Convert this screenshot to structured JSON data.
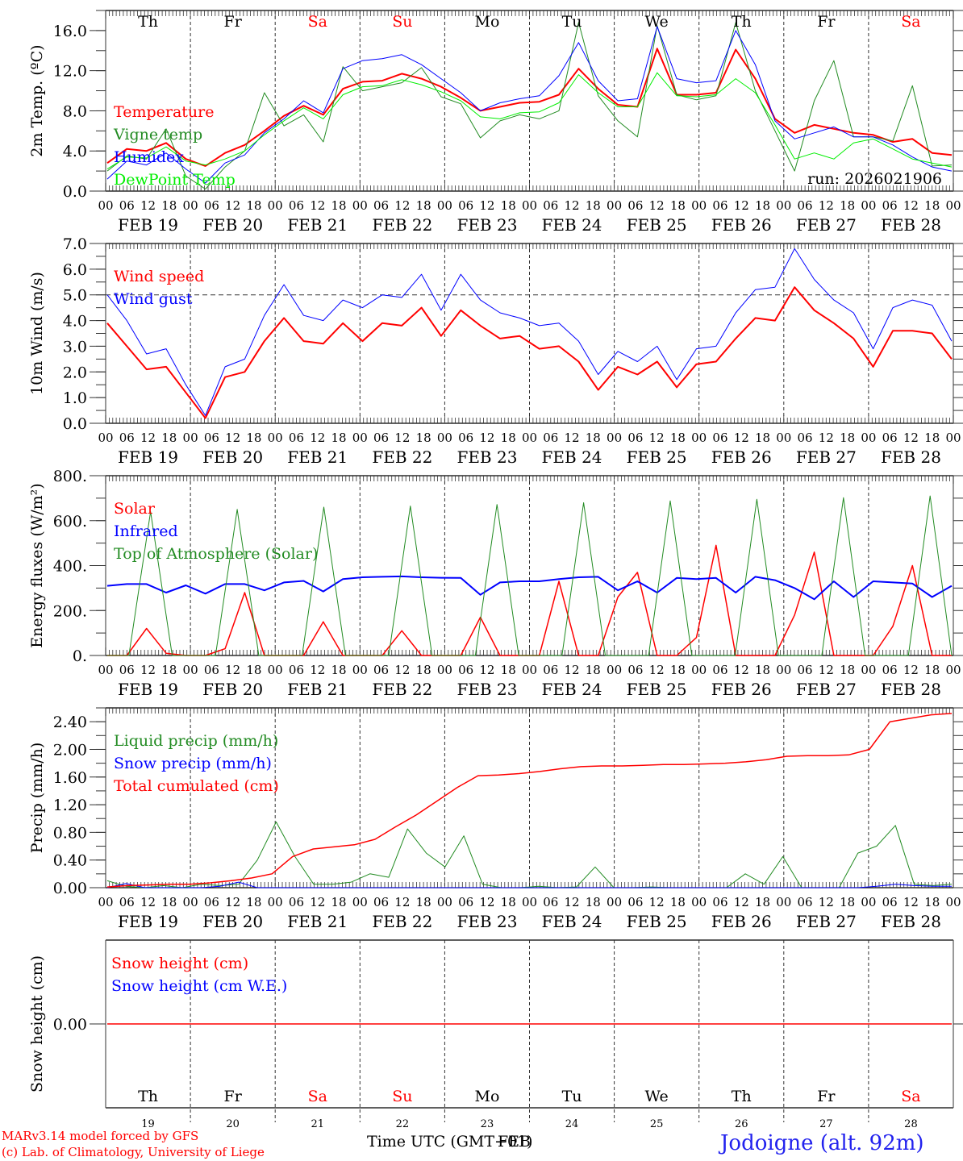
{
  "run_label": "run: 2026021906",
  "footer": {
    "model": "MARv3.14 model forced by GFS",
    "credit": "(c) Lab. of Climatology, University of Liege",
    "xaxis_title": "Time UTC (GMT+01)",
    "xaxis_overlap": "FEB",
    "location": "Jodoigne (alt. 92m)"
  },
  "days": [
    {
      "abbr": "Th",
      "date": "FEB 19",
      "num": "19",
      "weekend": false
    },
    {
      "abbr": "Fr",
      "date": "FEB 20",
      "num": "20",
      "weekend": false
    },
    {
      "abbr": "Sa",
      "date": "FEB 21",
      "num": "21",
      "weekend": true
    },
    {
      "abbr": "Su",
      "date": "FEB 22",
      "num": "22",
      "weekend": true
    },
    {
      "abbr": "Mo",
      "date": "FEB 23",
      "num": "23",
      "weekend": false
    },
    {
      "abbr": "Tu",
      "date": "FEB 24",
      "num": "24",
      "weekend": false
    },
    {
      "abbr": "We",
      "date": "FEB 25",
      "num": "25",
      "weekend": false
    },
    {
      "abbr": "Th",
      "date": "FEB 26",
      "num": "26",
      "weekend": false
    },
    {
      "abbr": "Fr",
      "date": "FEB 27",
      "num": "27",
      "weekend": false
    },
    {
      "abbr": "Sa",
      "date": "FEB 28",
      "num": "28",
      "weekend": true
    }
  ],
  "hour_labels": [
    "00",
    "06",
    "12",
    "18"
  ],
  "final_hour_label": "00",
  "colors": {
    "red": "#ff0000",
    "green": "#228b22",
    "blue": "#0000ff",
    "lightgreen": "#00ee00",
    "black": "#000000",
    "location": "#2222ee"
  },
  "chart_data": [
    {
      "type": "line",
      "id": "temp",
      "ylabel": "2m Temp. (ºC)",
      "ylim": [
        0,
        18
      ],
      "yticks": [
        0,
        4,
        8,
        12,
        16
      ],
      "ytick_labels": [
        "0.0",
        "4.0",
        "8.0",
        "12.0",
        "16.0"
      ],
      "x_unit": "hours since FEB 19 00 UTC, 6-hourly",
      "series": [
        {
          "name": "Temperature",
          "color": "#ff0000",
          "width": 2,
          "values": [
            2.8,
            4.2,
            4.0,
            4.8,
            3.2,
            2.5,
            3.8,
            4.6,
            6.0,
            7.5,
            8.5,
            7.6,
            10.2,
            10.9,
            11.0,
            11.7,
            11.2,
            10.4,
            9.3,
            8.0,
            8.4,
            8.8,
            8.9,
            9.6,
            12.2,
            10.2,
            8.6,
            8.4,
            14.2,
            9.6,
            9.6,
            9.8,
            14.1,
            11.2,
            7.2,
            5.8,
            6.6,
            6.2,
            5.8,
            5.6,
            4.9,
            5.2,
            3.8,
            3.6
          ]
        },
        {
          "name": "Vigne temp",
          "color": "#228b22",
          "width": 1,
          "values": [
            2.0,
            3.5,
            3.2,
            6.2,
            1.5,
            0.2,
            2.4,
            4.0,
            9.8,
            6.5,
            7.6,
            4.9,
            12.4,
            10.0,
            10.4,
            10.8,
            12.3,
            9.4,
            8.7,
            5.3,
            7.0,
            7.6,
            7.2,
            8.0,
            16.8,
            9.5,
            7.0,
            5.4,
            16.5,
            9.6,
            9.1,
            9.5,
            16.8,
            10.0,
            6.0,
            2.0,
            9.0,
            13.0,
            5.4,
            5.4,
            5.0,
            10.5,
            2.5,
            2.6
          ]
        },
        {
          "name": "Humidex",
          "color": "#0000ff",
          "width": 1,
          "values": [
            1.2,
            3.0,
            2.6,
            3.8,
            2.2,
            0.8,
            2.8,
            3.6,
            5.8,
            7.2,
            9.0,
            7.8,
            12.2,
            13.0,
            13.2,
            13.6,
            12.6,
            11.2,
            9.8,
            8.0,
            8.8,
            9.2,
            9.5,
            11.5,
            14.8,
            11.0,
            9.0,
            9.2,
            16.4,
            11.2,
            10.8,
            11.0,
            16.0,
            12.6,
            7.0,
            5.2,
            5.8,
            6.4,
            5.4,
            5.4,
            4.6,
            3.4,
            2.4,
            2.0
          ]
        },
        {
          "name": "DewPoint Temp",
          "color": "#00ee00",
          "width": 1,
          "values": [
            2.2,
            3.4,
            3.3,
            4.4,
            3.0,
            2.6,
            3.2,
            4.0,
            5.6,
            7.0,
            8.3,
            7.2,
            9.6,
            10.4,
            10.5,
            11.1,
            10.6,
            9.9,
            9.0,
            7.4,
            7.2,
            7.8,
            7.9,
            8.8,
            11.6,
            9.8,
            8.4,
            8.4,
            11.8,
            9.5,
            9.4,
            9.6,
            11.2,
            9.8,
            6.6,
            3.2,
            3.8,
            3.2,
            4.8,
            5.2,
            4.2,
            3.2,
            2.8,
            2.4
          ]
        }
      ]
    },
    {
      "type": "line",
      "id": "wind",
      "ylabel": "10m Wind (m/s)",
      "ylim": [
        0,
        7
      ],
      "yticks": [
        0,
        1,
        2,
        3,
        4,
        5,
        6,
        7
      ],
      "ytick_labels": [
        "0.0",
        "1.0",
        "2.0",
        "3.0",
        "4.0",
        "5.0",
        "6.0",
        "7.0"
      ],
      "reference_line": 5,
      "series": [
        {
          "name": "Wind speed",
          "color": "#ff0000",
          "width": 2,
          "values": [
            3.9,
            3.0,
            2.1,
            2.2,
            1.2,
            0.2,
            1.8,
            2.0,
            3.2,
            4.1,
            3.2,
            3.1,
            3.9,
            3.2,
            3.9,
            3.8,
            4.5,
            3.4,
            4.4,
            3.8,
            3.3,
            3.4,
            2.9,
            3.0,
            2.4,
            1.3,
            2.2,
            1.9,
            2.4,
            1.4,
            2.3,
            2.4,
            3.3,
            4.1,
            4.0,
            5.3,
            4.4,
            3.9,
            3.3,
            2.2,
            3.6,
            3.6,
            3.5,
            2.5
          ]
        },
        {
          "name": "Wind gust",
          "color": "#0000ff",
          "width": 1,
          "values": [
            5.0,
            4.0,
            2.7,
            2.9,
            1.5,
            0.3,
            2.2,
            2.5,
            4.2,
            5.4,
            4.2,
            4.0,
            4.8,
            4.5,
            5.0,
            4.9,
            5.8,
            4.4,
            5.8,
            4.8,
            4.3,
            4.1,
            3.8,
            3.9,
            3.2,
            1.9,
            2.8,
            2.4,
            3.0,
            1.7,
            2.9,
            3.0,
            4.3,
            5.2,
            5.3,
            6.8,
            5.6,
            4.8,
            4.3,
            2.9,
            4.5,
            4.8,
            4.6,
            3.2
          ]
        }
      ]
    },
    {
      "type": "line",
      "id": "energy",
      "ylabel": "Energy fluxes (W/m²)",
      "ylim": [
        0,
        800
      ],
      "yticks": [
        0,
        200,
        400,
        600,
        800
      ],
      "ytick_labels": [
        "0.",
        "200.",
        "400.",
        "600.",
        "800."
      ],
      "series": [
        {
          "name": "Solar",
          "color": "#ff0000",
          "width": 1.5,
          "values": [
            0,
            0,
            120,
            10,
            0,
            0,
            30,
            280,
            0,
            0,
            0,
            150,
            0,
            0,
            0,
            110,
            0,
            0,
            0,
            170,
            0,
            0,
            0,
            330,
            0,
            0,
            260,
            370,
            0,
            0,
            80,
            490,
            0,
            0,
            0,
            180,
            460,
            0,
            0,
            0,
            130,
            400,
            0,
            0
          ]
        },
        {
          "name": "Infrared",
          "color": "#0000ff",
          "width": 2,
          "values": [
            310,
            318,
            318,
            280,
            312,
            275,
            318,
            318,
            290,
            325,
            332,
            285,
            340,
            348,
            350,
            352,
            348,
            346,
            345,
            270,
            325,
            330,
            330,
            340,
            348,
            350,
            290,
            330,
            280,
            345,
            340,
            345,
            280,
            350,
            335,
            300,
            250,
            330,
            260,
            330,
            325,
            320,
            260,
            310
          ]
        },
        {
          "name": "Top of Atmosphere (Solar)",
          "color": "#228b22",
          "width": 1,
          "values": [
            0,
            0,
            640,
            0,
            0,
            0,
            650,
            0,
            0,
            0,
            660,
            0,
            0,
            0,
            665,
            0,
            0,
            0,
            672,
            0,
            0,
            0,
            680,
            0,
            0,
            0,
            688,
            0,
            0,
            0,
            695,
            0,
            0,
            0,
            702,
            0,
            0,
            0,
            710,
            0
          ]
        }
      ]
    },
    {
      "type": "line",
      "id": "precip",
      "ylabel": "Precip (mm/h)",
      "ylim": [
        0,
        2.6
      ],
      "yticks": [
        0,
        0.4,
        0.8,
        1.2,
        1.6,
        2.0,
        2.4
      ],
      "ytick_labels": [
        "0.00",
        "0.40",
        "0.80",
        "1.20",
        "1.60",
        "2.00",
        "2.40"
      ],
      "series": [
        {
          "name": "Liquid precip (mm/h)",
          "color": "#228b22",
          "width": 1,
          "values": [
            0.1,
            0.02,
            0.0,
            0.03,
            0.0,
            0.05,
            0.03,
            0.05,
            0.4,
            0.95,
            0.45,
            0.05,
            0.05,
            0.08,
            0.2,
            0.15,
            0.85,
            0.5,
            0.3,
            0.75,
            0.05,
            0.0,
            0.0,
            0.02,
            0.0,
            0.01,
            0.3,
            0.0,
            0.0,
            0.01,
            0.0,
            0.0,
            0.0,
            0.0,
            0.2,
            0.05,
            0.45,
            0.0,
            0.0,
            0.0,
            0.5,
            0.6,
            0.9,
            0.05,
            0.03,
            0.05
          ]
        },
        {
          "name": "Snow precip (mm/h)",
          "color": "#0000ff",
          "width": 1,
          "values": [
            0.0,
            0.06,
            0.0,
            0.0,
            0.0,
            0.0,
            0.02,
            0.08,
            0.0,
            0.0,
            0.0,
            0.0,
            0.0,
            0.0,
            0.0,
            0.0,
            0.0,
            0.0,
            0.0,
            0.0,
            0.0,
            0.0,
            0.0,
            0.0,
            0.0,
            0.0,
            0.0,
            0.0,
            0.0,
            0.0,
            0.0,
            0.0,
            0.0,
            0.0,
            0.0,
            0.0,
            0.0,
            0.0,
            0.0,
            0.0,
            0.0,
            0.02,
            0.05,
            0.03,
            0.02,
            0.02
          ]
        },
        {
          "name": "Total cumulated (cm)",
          "color": "#ff0000",
          "width": 1.5,
          "values": [
            0.01,
            0.03,
            0.04,
            0.05,
            0.05,
            0.07,
            0.1,
            0.14,
            0.2,
            0.45,
            0.56,
            0.59,
            0.62,
            0.7,
            0.88,
            1.05,
            1.25,
            1.45,
            1.62,
            1.63,
            1.65,
            1.68,
            1.72,
            1.75,
            1.76,
            1.76,
            1.77,
            1.78,
            1.78,
            1.79,
            1.8,
            1.82,
            1.85,
            1.9,
            1.91,
            1.91,
            1.92,
            2.0,
            2.4,
            2.45,
            2.5,
            2.52
          ]
        }
      ]
    },
    {
      "type": "line",
      "id": "snow",
      "ylabel": "Snow height (cm)",
      "ylim": [
        -1,
        1
      ],
      "yticks": [
        0
      ],
      "ytick_labels": [
        "0.00"
      ],
      "series": [
        {
          "name": "Snow height (cm)",
          "color": "#ff0000",
          "width": 1.5,
          "values": [
            0,
            0
          ]
        },
        {
          "name": "Snow height (cm W.E.)",
          "color": "#0000ff",
          "width": 1.5,
          "values": []
        }
      ]
    }
  ]
}
